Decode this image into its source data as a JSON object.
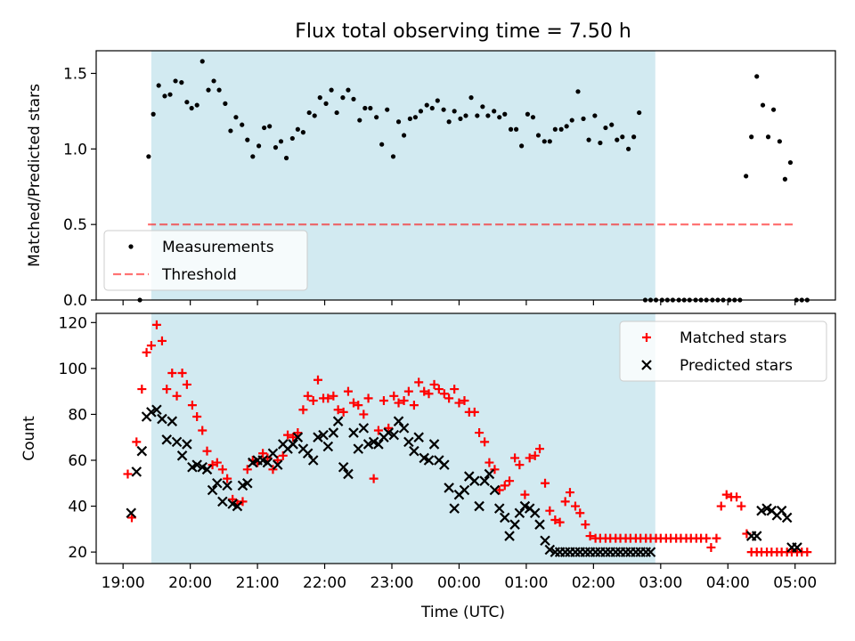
{
  "title": "Flux total observing time = 7.50 h",
  "xlabel": "Time (UTC)",
  "xticks": [
    {
      "label": "19:00",
      "h": -5.0
    },
    {
      "label": "20:00",
      "h": -4.0
    },
    {
      "label": "21:00",
      "h": -3.0
    },
    {
      "label": "22:00",
      "h": -2.0
    },
    {
      "label": "23:00",
      "h": -1.0
    },
    {
      "label": "00:00",
      "h": 0.0
    },
    {
      "label": "01:00",
      "h": 1.0
    },
    {
      "label": "02:00",
      "h": 2.0
    },
    {
      "label": "03:00",
      "h": 3.0
    },
    {
      "label": "04:00",
      "h": 4.0
    },
    {
      "label": "05:00",
      "h": 5.0
    }
  ],
  "colors": {
    "shade": "#add8e6",
    "measurement": "#000000",
    "threshold": "#ff0000",
    "matched": "#ff0000",
    "predicted": "#000000"
  },
  "chart_data": [
    {
      "type": "scatter",
      "ylabel": "Matched/Predicted stars",
      "xlim": [
        -5.4,
        5.6
      ],
      "ylim": [
        0,
        1.65
      ],
      "yticks": [
        "0.0",
        "0.5",
        "1.0",
        "1.5"
      ],
      "shaded_region": [
        -4.58,
        2.92
      ],
      "threshold": 0.5,
      "threshold_x": [
        -4.63,
        5.0
      ],
      "legend": {
        "position": "lower-left",
        "entries": [
          "Measurements",
          "Threshold"
        ]
      },
      "series": [
        {
          "name": "Measurements",
          "x": [
            -4.75,
            -4.62,
            -4.55,
            -4.47,
            -4.38,
            -4.3,
            -4.22,
            -4.13,
            -4.05,
            -3.98,
            -3.9,
            -3.82,
            -3.73,
            -3.65,
            -3.57,
            -3.48,
            -3.4,
            -3.32,
            -3.23,
            -3.15,
            -3.07,
            -2.98,
            -2.9,
            -2.82,
            -2.73,
            -2.65,
            -2.57,
            -2.48,
            -2.4,
            -2.32,
            -2.23,
            -2.15,
            -2.07,
            -1.98,
            -1.9,
            -1.82,
            -1.73,
            -1.65,
            -1.57,
            -1.48,
            -1.4,
            -1.32,
            -1.23,
            -1.15,
            -1.07,
            -0.98,
            -0.9,
            -0.82,
            -0.73,
            -0.65,
            -0.57,
            -0.48,
            -0.4,
            -0.32,
            -0.23,
            -0.15,
            -0.07,
            0.02,
            0.1,
            0.18,
            0.27,
            0.35,
            0.43,
            0.52,
            0.6,
            0.68,
            0.77,
            0.85,
            0.93,
            1.02,
            1.1,
            1.18,
            1.27,
            1.35,
            1.43,
            1.52,
            1.6,
            1.68,
            1.77,
            1.85,
            1.93,
            2.02,
            2.1,
            2.18,
            2.27,
            2.35,
            2.43,
            2.52,
            2.6,
            2.68,
            2.77,
            2.85,
            2.93,
            3.02,
            3.1,
            3.18,
            3.27,
            3.35,
            3.43,
            3.52,
            3.6,
            3.68,
            3.77,
            3.85,
            3.93,
            4.02,
            4.1,
            4.18,
            4.27,
            4.35,
            4.43,
            4.52,
            4.6,
            4.68,
            4.77,
            4.85,
            4.93,
            5.02,
            5.1,
            5.18
          ],
          "y": [
            0.0,
            0.95,
            1.23,
            1.42,
            1.35,
            1.36,
            1.45,
            1.44,
            1.31,
            1.27,
            1.29,
            1.58,
            1.39,
            1.45,
            1.39,
            1.3,
            1.12,
            1.21,
            1.16,
            1.06,
            0.95,
            1.02,
            1.14,
            1.15,
            1.01,
            1.05,
            0.94,
            1.07,
            1.13,
            1.11,
            1.24,
            1.22,
            1.34,
            1.3,
            1.39,
            1.24,
            1.34,
            1.39,
            1.33,
            1.19,
            1.27,
            1.27,
            1.21,
            1.03,
            1.26,
            0.95,
            1.18,
            1.09,
            1.2,
            1.21,
            1.25,
            1.29,
            1.27,
            1.32,
            1.26,
            1.18,
            1.25,
            1.2,
            1.22,
            1.34,
            1.22,
            1.28,
            1.22,
            1.25,
            1.21,
            1.23,
            1.13,
            1.13,
            1.02,
            1.23,
            1.21,
            1.09,
            1.05,
            1.05,
            1.13,
            1.13,
            1.15,
            1.19,
            1.38,
            1.2,
            1.06,
            1.22,
            1.04,
            1.14,
            1.16,
            1.06,
            1.08,
            1.0,
            1.08,
            1.24,
            0.0,
            0.0,
            0.0,
            0.0,
            0.0,
            0.0,
            0.0,
            0.0,
            0.0,
            0.0,
            0.0,
            0.0,
            0.0,
            0.0,
            0.0,
            0.0,
            0.0,
            0.0,
            0.82,
            1.08,
            1.48,
            1.29,
            1.08,
            1.26,
            1.05,
            0.8,
            0.91,
            0.0,
            0.0,
            0.0
          ]
        }
      ]
    },
    {
      "type": "scatter",
      "ylabel": "Count",
      "xlabel": "Time (UTC)",
      "xlim": [
        -5.4,
        5.6
      ],
      "ylim": [
        15,
        124
      ],
      "yticks": [
        "20",
        "40",
        "60",
        "80",
        "100",
        "120"
      ],
      "shaded_region": [
        -4.58,
        2.92
      ],
      "legend": {
        "position": "top-right",
        "entries": [
          "Matched stars",
          "Predicted stars"
        ]
      },
      "series": [
        {
          "name": "Matched stars",
          "x": [
            -4.93,
            -4.87,
            -4.8,
            -4.72,
            -4.65,
            -4.58,
            -4.5,
            -4.42,
            -4.35,
            -4.27,
            -4.2,
            -4.12,
            -4.05,
            -3.97,
            -3.9,
            -3.82,
            -3.75,
            -3.67,
            -3.6,
            -3.52,
            -3.45,
            -3.37,
            -3.3,
            -3.22,
            -3.15,
            -3.07,
            -3.0,
            -2.92,
            -2.85,
            -2.77,
            -2.7,
            -2.62,
            -2.55,
            -2.47,
            -2.4,
            -2.32,
            -2.25,
            -2.17,
            -2.1,
            -2.02,
            -1.95,
            -1.87,
            -1.8,
            -1.72,
            -1.65,
            -1.57,
            -1.5,
            -1.42,
            -1.35,
            -1.27,
            -1.2,
            -1.12,
            -1.05,
            -0.97,
            -0.9,
            -0.82,
            -0.75,
            -0.67,
            -0.6,
            -0.52,
            -0.45,
            -0.37,
            -0.3,
            -0.22,
            -0.15,
            -0.07,
            0.0,
            0.08,
            0.15,
            0.23,
            0.3,
            0.38,
            0.45,
            0.53,
            0.6,
            0.68,
            0.75,
            0.83,
            0.9,
            0.98,
            1.05,
            1.13,
            1.2,
            1.28,
            1.35,
            1.43,
            1.5,
            1.58,
            1.65,
            1.73,
            1.8,
            1.88,
            1.95,
            2.03,
            2.1,
            2.18,
            2.25,
            2.33,
            2.4,
            2.48,
            2.55,
            2.63,
            2.7,
            2.78,
            2.85,
            2.93,
            3.0,
            3.08,
            3.15,
            3.23,
            3.3,
            3.38,
            3.45,
            3.53,
            3.6,
            3.68,
            3.75,
            3.83,
            3.9,
            3.98,
            4.05,
            4.13,
            4.2,
            4.28,
            4.35,
            4.43,
            4.5,
            4.58,
            4.65,
            4.73,
            4.8,
            4.88,
            4.95,
            5.03,
            5.1,
            5.18
          ],
          "y": [
            54,
            35,
            68,
            91,
            107,
            110,
            119,
            112,
            91,
            98,
            88,
            98,
            93,
            84,
            79,
            73,
            64,
            58,
            59,
            56,
            52,
            43,
            41,
            42,
            56,
            60,
            59,
            63,
            61,
            56,
            60,
            62,
            71,
            70,
            72,
            82,
            88,
            86,
            95,
            87,
            87,
            88,
            82,
            81,
            90,
            85,
            84,
            80,
            87,
            52,
            73,
            86,
            74,
            88,
            85,
            86,
            90,
            84,
            94,
            90,
            89,
            93,
            91,
            89,
            87,
            91,
            85,
            86,
            81,
            81,
            72,
            68,
            59,
            56,
            47,
            49,
            51,
            61,
            58,
            45,
            61,
            62,
            65,
            50,
            38,
            34,
            33,
            42,
            46,
            40,
            37,
            32,
            27,
            26,
            26,
            26,
            26,
            26,
            26,
            26,
            26,
            26,
            26,
            26,
            26,
            26,
            26,
            26,
            26,
            26,
            26,
            26,
            26,
            26,
            26,
            26,
            22,
            26,
            40,
            45,
            44,
            44,
            40,
            28,
            20,
            20,
            20,
            20,
            20,
            20,
            20,
            20,
            20,
            20,
            20,
            20
          ]
        },
        {
          "name": "Predicted stars",
          "x": [
            -4.88,
            -4.8,
            -4.72,
            -4.65,
            -4.58,
            -4.5,
            -4.42,
            -4.35,
            -4.27,
            -4.2,
            -4.12,
            -4.05,
            -3.97,
            -3.9,
            -3.82,
            -3.75,
            -3.67,
            -3.6,
            -3.52,
            -3.45,
            -3.37,
            -3.3,
            -3.22,
            -3.15,
            -3.07,
            -3.0,
            -2.92,
            -2.85,
            -2.77,
            -2.7,
            -2.62,
            -2.55,
            -2.47,
            -2.4,
            -2.32,
            -2.25,
            -2.17,
            -2.1,
            -2.02,
            -1.95,
            -1.87,
            -1.8,
            -1.72,
            -1.65,
            -1.57,
            -1.5,
            -1.42,
            -1.35,
            -1.27,
            -1.2,
            -1.12,
            -1.05,
            -0.97,
            -0.9,
            -0.82,
            -0.75,
            -0.67,
            -0.6,
            -0.52,
            -0.45,
            -0.37,
            -0.3,
            -0.22,
            -0.15,
            -0.07,
            0.0,
            0.08,
            0.15,
            0.23,
            0.3,
            0.38,
            0.45,
            0.53,
            0.6,
            0.68,
            0.75,
            0.83,
            0.9,
            0.98,
            1.05,
            1.13,
            1.2,
            1.28,
            1.35,
            1.43,
            1.5,
            1.58,
            1.65,
            1.73,
            1.8,
            1.88,
            1.95,
            2.03,
            2.1,
            2.18,
            2.25,
            2.33,
            2.4,
            2.48,
            2.55,
            2.63,
            2.7,
            2.78,
            2.85,
            4.35,
            4.43,
            4.5,
            4.58,
            4.65,
            4.73,
            4.8,
            4.88,
            4.95,
            5.03
          ],
          "y": [
            37,
            55,
            64,
            79,
            81,
            82,
            78,
            69,
            77,
            68,
            62,
            67,
            57,
            58,
            57,
            56,
            47,
            50,
            42,
            49,
            41,
            40,
            49,
            50,
            59,
            60,
            60,
            59,
            63,
            58,
            67,
            65,
            67,
            70,
            65,
            63,
            60,
            70,
            71,
            66,
            72,
            77,
            57,
            54,
            72,
            65,
            74,
            67,
            68,
            67,
            70,
            72,
            71,
            77,
            74,
            68,
            64,
            70,
            61,
            60,
            67,
            60,
            58,
            48,
            39,
            45,
            47,
            53,
            51,
            40,
            51,
            54,
            47,
            39,
            35,
            27,
            32,
            37,
            40,
            39,
            37,
            32,
            25,
            21,
            20,
            20,
            20,
            20,
            20,
            20,
            20,
            20,
            20,
            20,
            20,
            20,
            20,
            20,
            20,
            20,
            20,
            20,
            20,
            20,
            27,
            27,
            38,
            39,
            38,
            36,
            38,
            35,
            22,
            22
          ]
        }
      ]
    }
  ]
}
